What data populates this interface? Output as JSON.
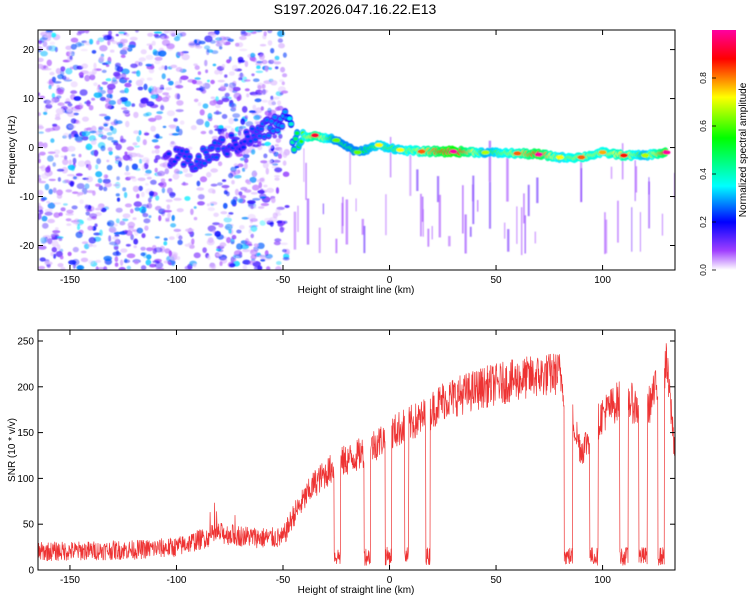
{
  "figure_title": "S197.2026.047.16.22.E13",
  "chart_data": [
    {
      "type": "heatmap",
      "name": "spectrogram",
      "xlabel": "Height of straight line (km)",
      "ylabel": "Frequency (Hz)",
      "xlim": [
        -165,
        134
      ],
      "ylim": [
        -25,
        24
      ],
      "xticks": [
        -150,
        -100,
        -50,
        0,
        50,
        100
      ],
      "yticks": [
        -20,
        -10,
        0,
        10,
        20
      ],
      "colorbar": {
        "label": "Normalized spectral amplitude",
        "range": [
          0,
          1
        ],
        "ticks": [
          0.0,
          0.2,
          0.4,
          0.6,
          0.8
        ],
        "tick_labels": [
          "0.0",
          "0.2",
          "0.4",
          "0.6",
          "0.8"
        ],
        "colors": [
          "#ffffff",
          "#a040ff",
          "#0000ff",
          "#00ffff",
          "#00ff00",
          "#ffff00",
          "#ff0000",
          "#ff00a0"
        ]
      },
      "noise_region": {
        "x": [
          -165,
          -48
        ],
        "freq": [
          -25,
          24
        ],
        "level": 0.15
      },
      "ridge": [
        {
          "x": -105,
          "freq": -2.0,
          "amp": 0.22
        },
        {
          "x": -90,
          "freq": -3.0,
          "amp": 0.25
        },
        {
          "x": -80,
          "freq": 0.0,
          "amp": 0.25
        },
        {
          "x": -70,
          "freq": 1.0,
          "amp": 0.22
        },
        {
          "x": -48,
          "freq": 6.0,
          "amp": 0.3
        },
        {
          "x": -45,
          "freq": 1.5,
          "amp": 0.45
        },
        {
          "x": -35,
          "freq": 2.5,
          "amp": 0.8
        },
        {
          "x": -25,
          "freq": 1.5,
          "amp": 0.5
        },
        {
          "x": -15,
          "freq": -1.0,
          "amp": 0.5
        },
        {
          "x": -5,
          "freq": 0.5,
          "amp": 0.6
        },
        {
          "x": 5,
          "freq": -0.5,
          "amp": 0.6
        },
        {
          "x": 15,
          "freq": -0.8,
          "amp": 0.7
        },
        {
          "x": 30,
          "freq": -0.8,
          "amp": 1.0
        },
        {
          "x": 45,
          "freq": -1.0,
          "amp": 0.55
        },
        {
          "x": 60,
          "freq": -1.2,
          "amp": 0.7
        },
        {
          "x": 70,
          "freq": -1.4,
          "amp": 0.9
        },
        {
          "x": 80,
          "freq": -2.0,
          "amp": 0.6
        },
        {
          "x": 90,
          "freq": -2.0,
          "amp": 0.7
        },
        {
          "x": 100,
          "freq": -1.0,
          "amp": 0.65
        },
        {
          "x": 110,
          "freq": -1.6,
          "amp": 0.75
        },
        {
          "x": 120,
          "freq": -1.6,
          "amp": 0.55
        },
        {
          "x": 130,
          "freq": -1.0,
          "amp": 0.9
        }
      ]
    },
    {
      "type": "line",
      "name": "snr",
      "xlabel": "Height of straight line (km)",
      "ylabel": "SNR (10 * v/v)",
      "xlim": [
        -165,
        134
      ],
      "ylim": [
        0,
        262
      ],
      "xticks": [
        -150,
        -100,
        -50,
        0,
        50,
        100
      ],
      "yticks": [
        0,
        50,
        100,
        150,
        200,
        250
      ],
      "color": "#ee3333",
      "envelope": {
        "x": [
          -165,
          -120,
          -100,
          -80,
          -60,
          -50,
          -45,
          -35,
          -25,
          -15,
          -5,
          5,
          15,
          25,
          45,
          65,
          80,
          90,
          100,
          110,
          120,
          130,
          134
        ],
        "snr": [
          20,
          22,
          25,
          40,
          35,
          35,
          60,
          95,
          115,
          125,
          140,
          155,
          165,
          185,
          200,
          210,
          215,
          130,
          170,
          190,
          170,
          225,
          130
        ]
      },
      "noise_amplitude": 18,
      "dropouts": [
        {
          "from": -26,
          "to": -23,
          "snr": 15
        },
        {
          "from": -12,
          "to": -9,
          "snr": 15
        },
        {
          "from": -2,
          "to": 1,
          "snr": 15
        },
        {
          "from": 7,
          "to": 9,
          "snr": 15
        },
        {
          "from": 17,
          "to": 19,
          "snr": 15
        },
        {
          "from": 82,
          "to": 86,
          "snr": 15
        },
        {
          "from": 94,
          "to": 98,
          "snr": 15
        },
        {
          "from": 108,
          "to": 112,
          "snr": 15
        },
        {
          "from": 117,
          "to": 121,
          "snr": 15
        },
        {
          "from": 126,
          "to": 129,
          "snr": 15
        }
      ]
    }
  ]
}
